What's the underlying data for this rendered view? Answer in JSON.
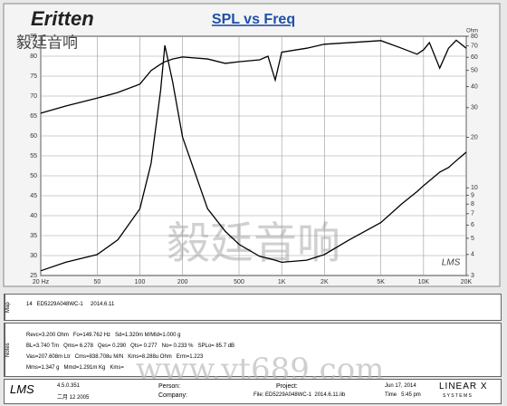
{
  "logo": {
    "brand": "Eritten",
    "chinese": "毅廷音响"
  },
  "watermark": {
    "chinese": "毅廷音响",
    "url": "www.yt689.com"
  },
  "plot_mark": "LMS",
  "chart_data": {
    "type": "line",
    "title": "SPL vs Freq",
    "y2label": "Ohm",
    "xscale": "log",
    "y2scale": "log",
    "grid": true,
    "x": [
      20,
      30,
      50,
      70,
      100,
      120,
      140,
      150,
      170,
      200,
      300,
      400,
      500,
      700,
      800,
      900,
      1000,
      1500,
      2000,
      3000,
      5000,
      7000,
      9000,
      10000,
      11000,
      13000,
      15000,
      17000,
      20000
    ],
    "series": [
      {
        "name": "SPL",
        "color": "#000000",
        "values": [
          65.7,
          67.5,
          69.5,
          70.9,
          73,
          76.4,
          78,
          78.6,
          79.3,
          79.8,
          79.3,
          78.2,
          78.6,
          79.1,
          80,
          74,
          81,
          82,
          83,
          83.4,
          83.9,
          82,
          80.5,
          81.6,
          83.4,
          77,
          82,
          84,
          82
        ]
      },
      {
        "name": "Impedance",
        "color": "#000000",
        "axis": "y2",
        "values": [
          3.2,
          3.6,
          4.0,
          4.9,
          7.5,
          14,
          38,
          70.6,
          43,
          20,
          7.5,
          5.5,
          4.6,
          3.9,
          3.8,
          3.7,
          3.6,
          3.7,
          4.0,
          4.9,
          6.2,
          8.0,
          9.5,
          10.3,
          11,
          12.4,
          13.2,
          14.5,
          16.3
        ]
      }
    ],
    "xlim": [
      20,
      20000
    ],
    "xticks": [
      {
        "value": 20,
        "label": "20 Hz"
      },
      50,
      100,
      200,
      500,
      {
        "value": 1000,
        "label": "1K"
      },
      {
        "value": 2000,
        "label": "2K"
      },
      {
        "value": 5000,
        "label": "5K"
      },
      {
        "value": 10000,
        "label": "10K"
      },
      {
        "value": 20000,
        "label": "20K"
      }
    ],
    "ylim": [
      25,
      85
    ],
    "yticks": [
      25,
      30,
      35,
      40,
      45,
      50,
      55,
      60,
      65,
      70,
      75,
      80,
      85
    ],
    "y2lim": [
      3,
      80
    ],
    "y2ticks": [
      3,
      4,
      5,
      6,
      7,
      8,
      9,
      10,
      20,
      30,
      40,
      50,
      60,
      70,
      80
    ]
  },
  "map": {
    "label": "Map",
    "entry": "14   ED5229A048WC-1     2014.6.11"
  },
  "notes": {
    "label": "Notes",
    "lines": [
      "Revc=3.200 Ohm   Fo=149.762 Hz   Sd=1.320m M/Mld=1.000 g",
      "BL=3.740 Tm   Qms= 6.278   Qes= 0.290   Qts= 0.277   No= 0.233 %   SPLo= 85.7 dB",
      "Vas=207.608m Ltr   Cms=838.708u M/N   Kms=8.288u Ohm   Erm=1.223",
      "Mms=1.347 g   Mmd=1.291m Kg   Kms="
    ]
  },
  "footer": {
    "lms": "LMS",
    "version": "4.5.0.351",
    "build": "二月 12 2005",
    "person": "Person:",
    "company": "Company:",
    "project": "Project:",
    "file": "File: ED5229A048WC-1  2014.6.11.lib",
    "date": "Jun 17, 2014",
    "time": "Time   5:45 pm",
    "brand": "LINEAR X",
    "systems": "S Y S T E M S"
  }
}
